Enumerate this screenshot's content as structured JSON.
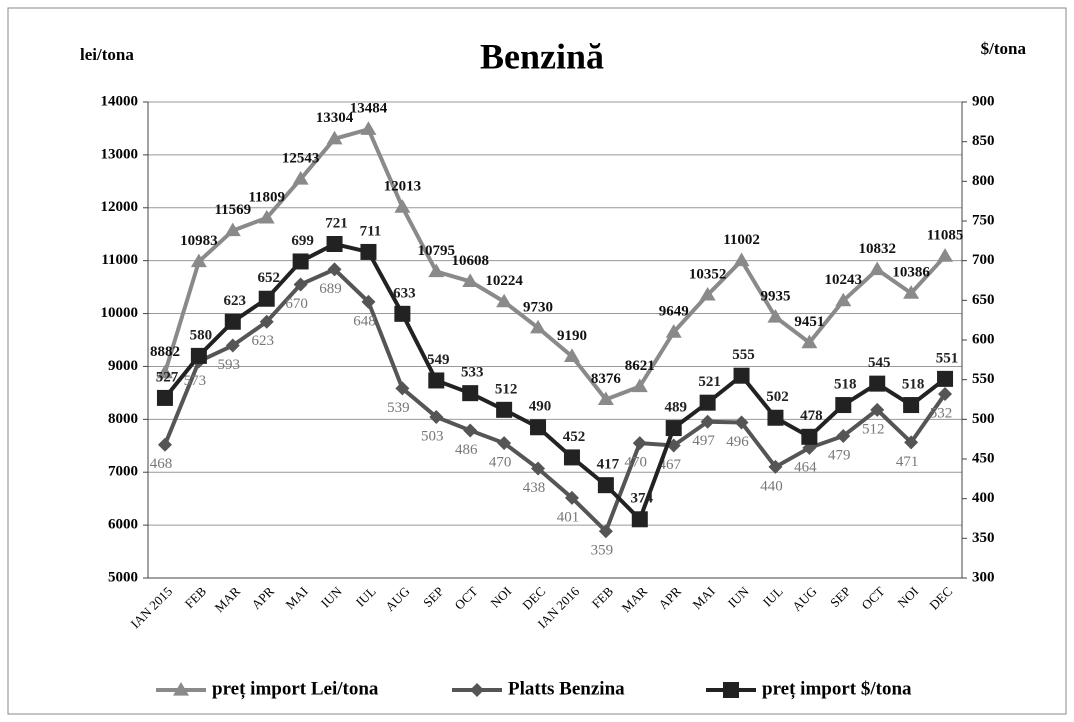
{
  "chart_data": {
    "type": "line",
    "title": "Benzină",
    "ylabel": "lei/tona",
    "y2label": "$/tona",
    "categories": [
      "IAN 2015",
      "FEB",
      "MAR",
      "APR",
      "MAI",
      "IUN",
      "IUL",
      "AUG",
      "SEP",
      "OCT",
      "NOI",
      "DEC",
      "IAN 2016",
      "FEB",
      "MAR",
      "APR",
      "MAI",
      "IUN",
      "IUL",
      "AUG",
      "SEP",
      "OCT",
      "NOI",
      "DEC"
    ],
    "series": [
      {
        "name": "preț import Lei/tona",
        "color": "#8a8a8a",
        "marker": "triangle",
        "axis": "y",
        "values": [
          8882,
          10983,
          11569,
          11809,
          12543,
          13304,
          13484,
          12013,
          10795,
          10608,
          10224,
          9730,
          9190,
          8376,
          8621,
          9649,
          10352,
          11002,
          9935,
          9451,
          10243,
          10832,
          10386,
          11085
        ]
      },
      {
        "name": "Platts Benzina",
        "color": "#555555",
        "marker": "diamond",
        "axis": "y2",
        "values": [
          468,
          573,
          593,
          623,
          670,
          689,
          648,
          539,
          503,
          486,
          470,
          438,
          401,
          359,
          470,
          467,
          497,
          496,
          440,
          464,
          479,
          512,
          471,
          532
        ]
      },
      {
        "name": "preț import $/tona",
        "color": "#222222",
        "marker": "square",
        "axis": "y2",
        "values": [
          527,
          580,
          623,
          652,
          699,
          721,
          711,
          633,
          549,
          533,
          512,
          490,
          452,
          417,
          374,
          489,
          521,
          555,
          502,
          478,
          518,
          545,
          518,
          551
        ]
      }
    ],
    "ylim": [
      5000,
      14000
    ],
    "yticks": [
      5000,
      6000,
      7000,
      8000,
      9000,
      10000,
      11000,
      12000,
      13000,
      14000
    ],
    "y2lim": [
      300,
      900
    ],
    "y2ticks": [
      300,
      350,
      400,
      450,
      500,
      550,
      600,
      650,
      700,
      750,
      800,
      850,
      900
    ],
    "grid": true
  }
}
